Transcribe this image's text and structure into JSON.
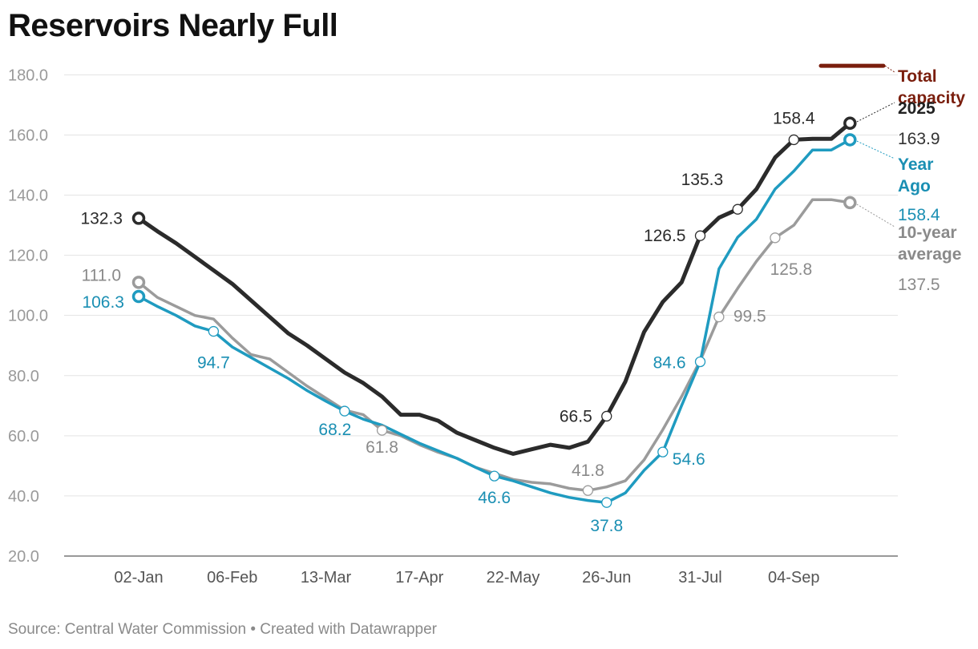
{
  "title": "Reservoirs Nearly Full",
  "source": "Source: Central Water Commission • Created with Datawrapper",
  "chart_data": {
    "type": "line",
    "title": "Reservoirs Nearly Full",
    "xlabel": "",
    "ylabel": "",
    "ylim": [
      20,
      180
    ],
    "yticks": [
      20,
      40,
      60,
      80,
      100,
      120,
      140,
      160,
      180
    ],
    "ytick_labels": [
      "20.0",
      "40.0",
      "60.0",
      "80.0",
      "100.0",
      "120.0",
      "140.0",
      "160.0",
      "180.0"
    ],
    "xticks": [
      {
        "week": 0,
        "label": "02-Jan"
      },
      {
        "week": 5,
        "label": "06-Feb"
      },
      {
        "week": 10,
        "label": "13-Mar"
      },
      {
        "week": 15,
        "label": "17-Apr"
      },
      {
        "week": 20,
        "label": "22-May"
      },
      {
        "week": 25,
        "label": "26-Jun"
      },
      {
        "week": 30,
        "label": "31-Jul"
      },
      {
        "week": 35,
        "label": "04-Sep"
      }
    ],
    "grid": true,
    "colors": {
      "2025": "#2b2b2b",
      "year_ago": "#1f9bc0",
      "ten_year": "#9b9b9b",
      "capacity": "#7a1e0d"
    },
    "total_capacity": {
      "value": 183,
      "label_lines": [
        "Total",
        "capacity"
      ]
    },
    "series": [
      {
        "key": "ten_year",
        "name_lines": [
          "10-year",
          "average"
        ],
        "end_value_label": "137.5",
        "color": "#9b9b9b",
        "values": [
          111.0,
          106,
          103,
          100,
          98.8,
          92.5,
          87,
          85.5,
          81,
          76.5,
          72.5,
          68.5,
          67,
          61.8,
          60,
          57,
          54.5,
          52.5,
          49.5,
          47.5,
          45.5,
          44.5,
          44,
          42.5,
          41.8,
          43,
          45,
          52,
          62,
          73,
          85,
          99.5,
          109,
          118,
          125.8,
          130,
          138.5,
          138.5,
          137.5
        ],
        "annotations": [
          {
            "week": 0,
            "label": "111.0"
          },
          {
            "week": 13,
            "label": "61.8"
          },
          {
            "week": 24,
            "label": "41.8"
          },
          {
            "week": 31,
            "label": "99.5"
          },
          {
            "week": 34,
            "label": "125.8"
          }
        ]
      },
      {
        "key": "year_ago",
        "name_lines": [
          "Year",
          "Ago"
        ],
        "end_value_label": "158.4",
        "color": "#1f9bc0",
        "values": [
          106.3,
          103,
          100,
          96.5,
          94.7,
          89.5,
          86,
          82.5,
          79,
          75,
          71.5,
          68.2,
          65.5,
          63.5,
          60.5,
          57.5,
          55,
          52.5,
          49.5,
          46.6,
          45,
          43,
          41,
          39.5,
          38.5,
          37.8,
          41,
          48.5,
          54.6,
          70,
          84.6,
          115.5,
          126,
          132,
          142,
          148,
          155,
          155,
          158.4
        ],
        "annotations": [
          {
            "week": 0,
            "label": "106.3"
          },
          {
            "week": 4,
            "label": "94.7"
          },
          {
            "week": 11,
            "label": "68.2"
          },
          {
            "week": 19,
            "label": "46.6"
          },
          {
            "week": 25,
            "label": "37.8"
          },
          {
            "week": 28,
            "label": "54.6"
          },
          {
            "week": 30,
            "label": "84.6"
          }
        ]
      },
      {
        "key": "2025",
        "name_lines": [
          "2025"
        ],
        "end_value_label": "163.9",
        "color": "#2b2b2b",
        "values": [
          132.3,
          128,
          124,
          119.5,
          115,
          110.5,
          105,
          99.5,
          94,
          90,
          85.5,
          81,
          77.5,
          73,
          67,
          67,
          65,
          61,
          58.5,
          56,
          54,
          55.5,
          57,
          56,
          58,
          66.5,
          78,
          94.5,
          104.5,
          111,
          126.5,
          132.5,
          135.3,
          142,
          152.5,
          158.4,
          158.7,
          158.7,
          163.9
        ],
        "annotations": [
          {
            "week": 0,
            "label": "132.3"
          },
          {
            "week": 25,
            "label": "66.5"
          },
          {
            "week": 30,
            "label": "126.5"
          },
          {
            "week": 32,
            "label": "135.3"
          },
          {
            "week": 35,
            "label": "158.4"
          }
        ]
      }
    ]
  }
}
